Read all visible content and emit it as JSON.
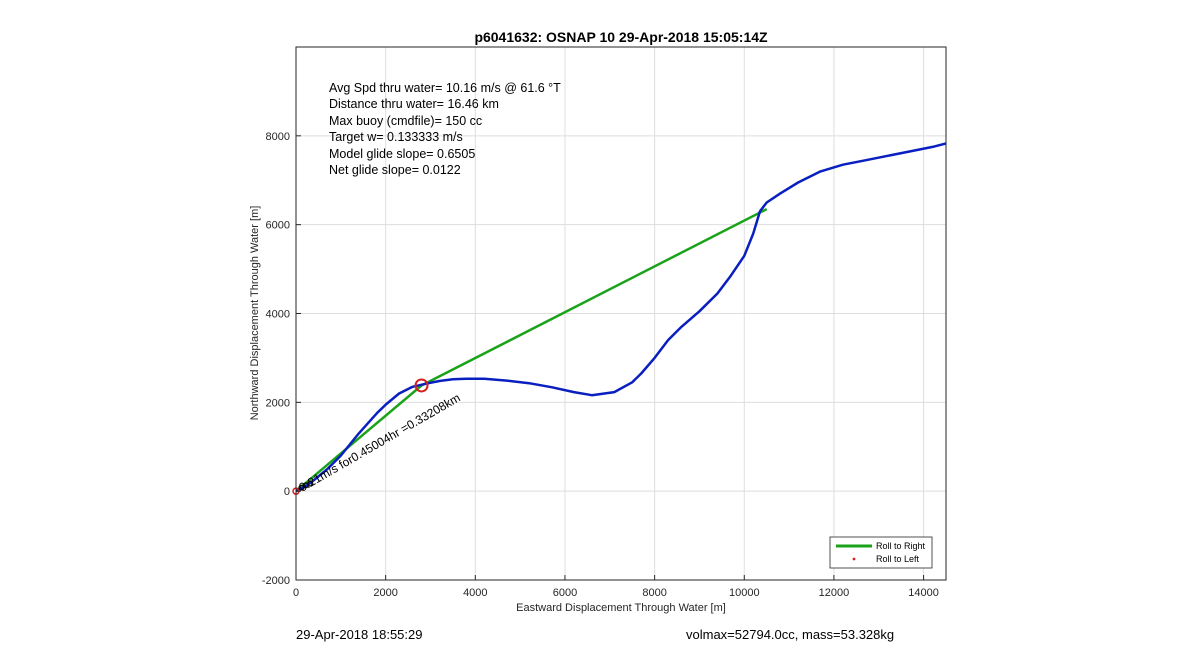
{
  "chart_data": {
    "type": "line",
    "title": "p6041632: OSNAP 10 29-Apr-2018 15:05:14Z",
    "xlabel": "Eastward Displacement Through Water [m]",
    "ylabel": "Northward Displacement Through Water [m]",
    "xlim": [
      0,
      14500
    ],
    "ylim": [
      -2000,
      10000
    ],
    "xticks": [
      0,
      2000,
      4000,
      6000,
      8000,
      10000,
      12000,
      14000
    ],
    "yticks": [
      -2000,
      0,
      2000,
      4000,
      6000,
      8000
    ],
    "grid": true,
    "legend": {
      "placement": "bottom-right",
      "entries": [
        {
          "label": "Roll to Right",
          "color": "#1aa31a",
          "marker": "line"
        },
        {
          "label": "Roll to Left",
          "color": "#e02020",
          "marker": "dot"
        }
      ]
    },
    "series": [
      {
        "name": "",
        "color": "#0a1fbf",
        "x": [
          0,
          100,
          200,
          400,
          700,
          1000,
          1400,
          1800,
          2000,
          2300,
          2600,
          2900,
          3200,
          3500,
          3800,
          4200,
          4700,
          5200,
          5700,
          6200,
          6600,
          7100,
          7500,
          7700,
          8000,
          8300,
          8600,
          9000,
          9400,
          9700,
          10000,
          10200,
          10350,
          10500,
          10800,
          11200,
          11700,
          12200,
          12700,
          13200,
          13700,
          14200,
          14500
        ],
        "y": [
          0,
          50,
          100,
          250,
          500,
          800,
          1300,
          1750,
          1950,
          2200,
          2350,
          2420,
          2480,
          2520,
          2530,
          2530,
          2490,
          2430,
          2340,
          2230,
          2160,
          2230,
          2450,
          2650,
          3000,
          3400,
          3700,
          4050,
          4450,
          4850,
          5300,
          5800,
          6300,
          6500,
          6700,
          6950,
          7200,
          7350,
          7450,
          7550,
          7650,
          7750,
          7830
        ]
      },
      {
        "name": "",
        "color": "#1aa31a",
        "x": [
          0,
          2800,
          10500
        ],
        "y": [
          0,
          2380,
          6350
        ]
      }
    ],
    "markers": [
      {
        "type": "circle",
        "color": "#d42020",
        "x": 2800,
        "y": 2380
      },
      {
        "type": "circle",
        "color": "#d42020",
        "x": 0,
        "y": 0
      }
    ],
    "annotations": {
      "info_lines": [
        "Avg Spd thru water= 10.16 m/s @  61.6 °T",
        "Distance thru water= 16.46 km",
        "Max buoy (cmdfile)= 150 cc",
        "Target w= 0.133333 m/s",
        "Model glide slope= 0.6505",
        "Net glide slope= 0.0122"
      ],
      "segment_label": "0.21m/s for0.45004hr =0.33208km"
    }
  },
  "footer": {
    "timestamp": "29-Apr-2018 18:55:29",
    "stats": "volmax=52794.0cc, mass=53.328kg"
  }
}
